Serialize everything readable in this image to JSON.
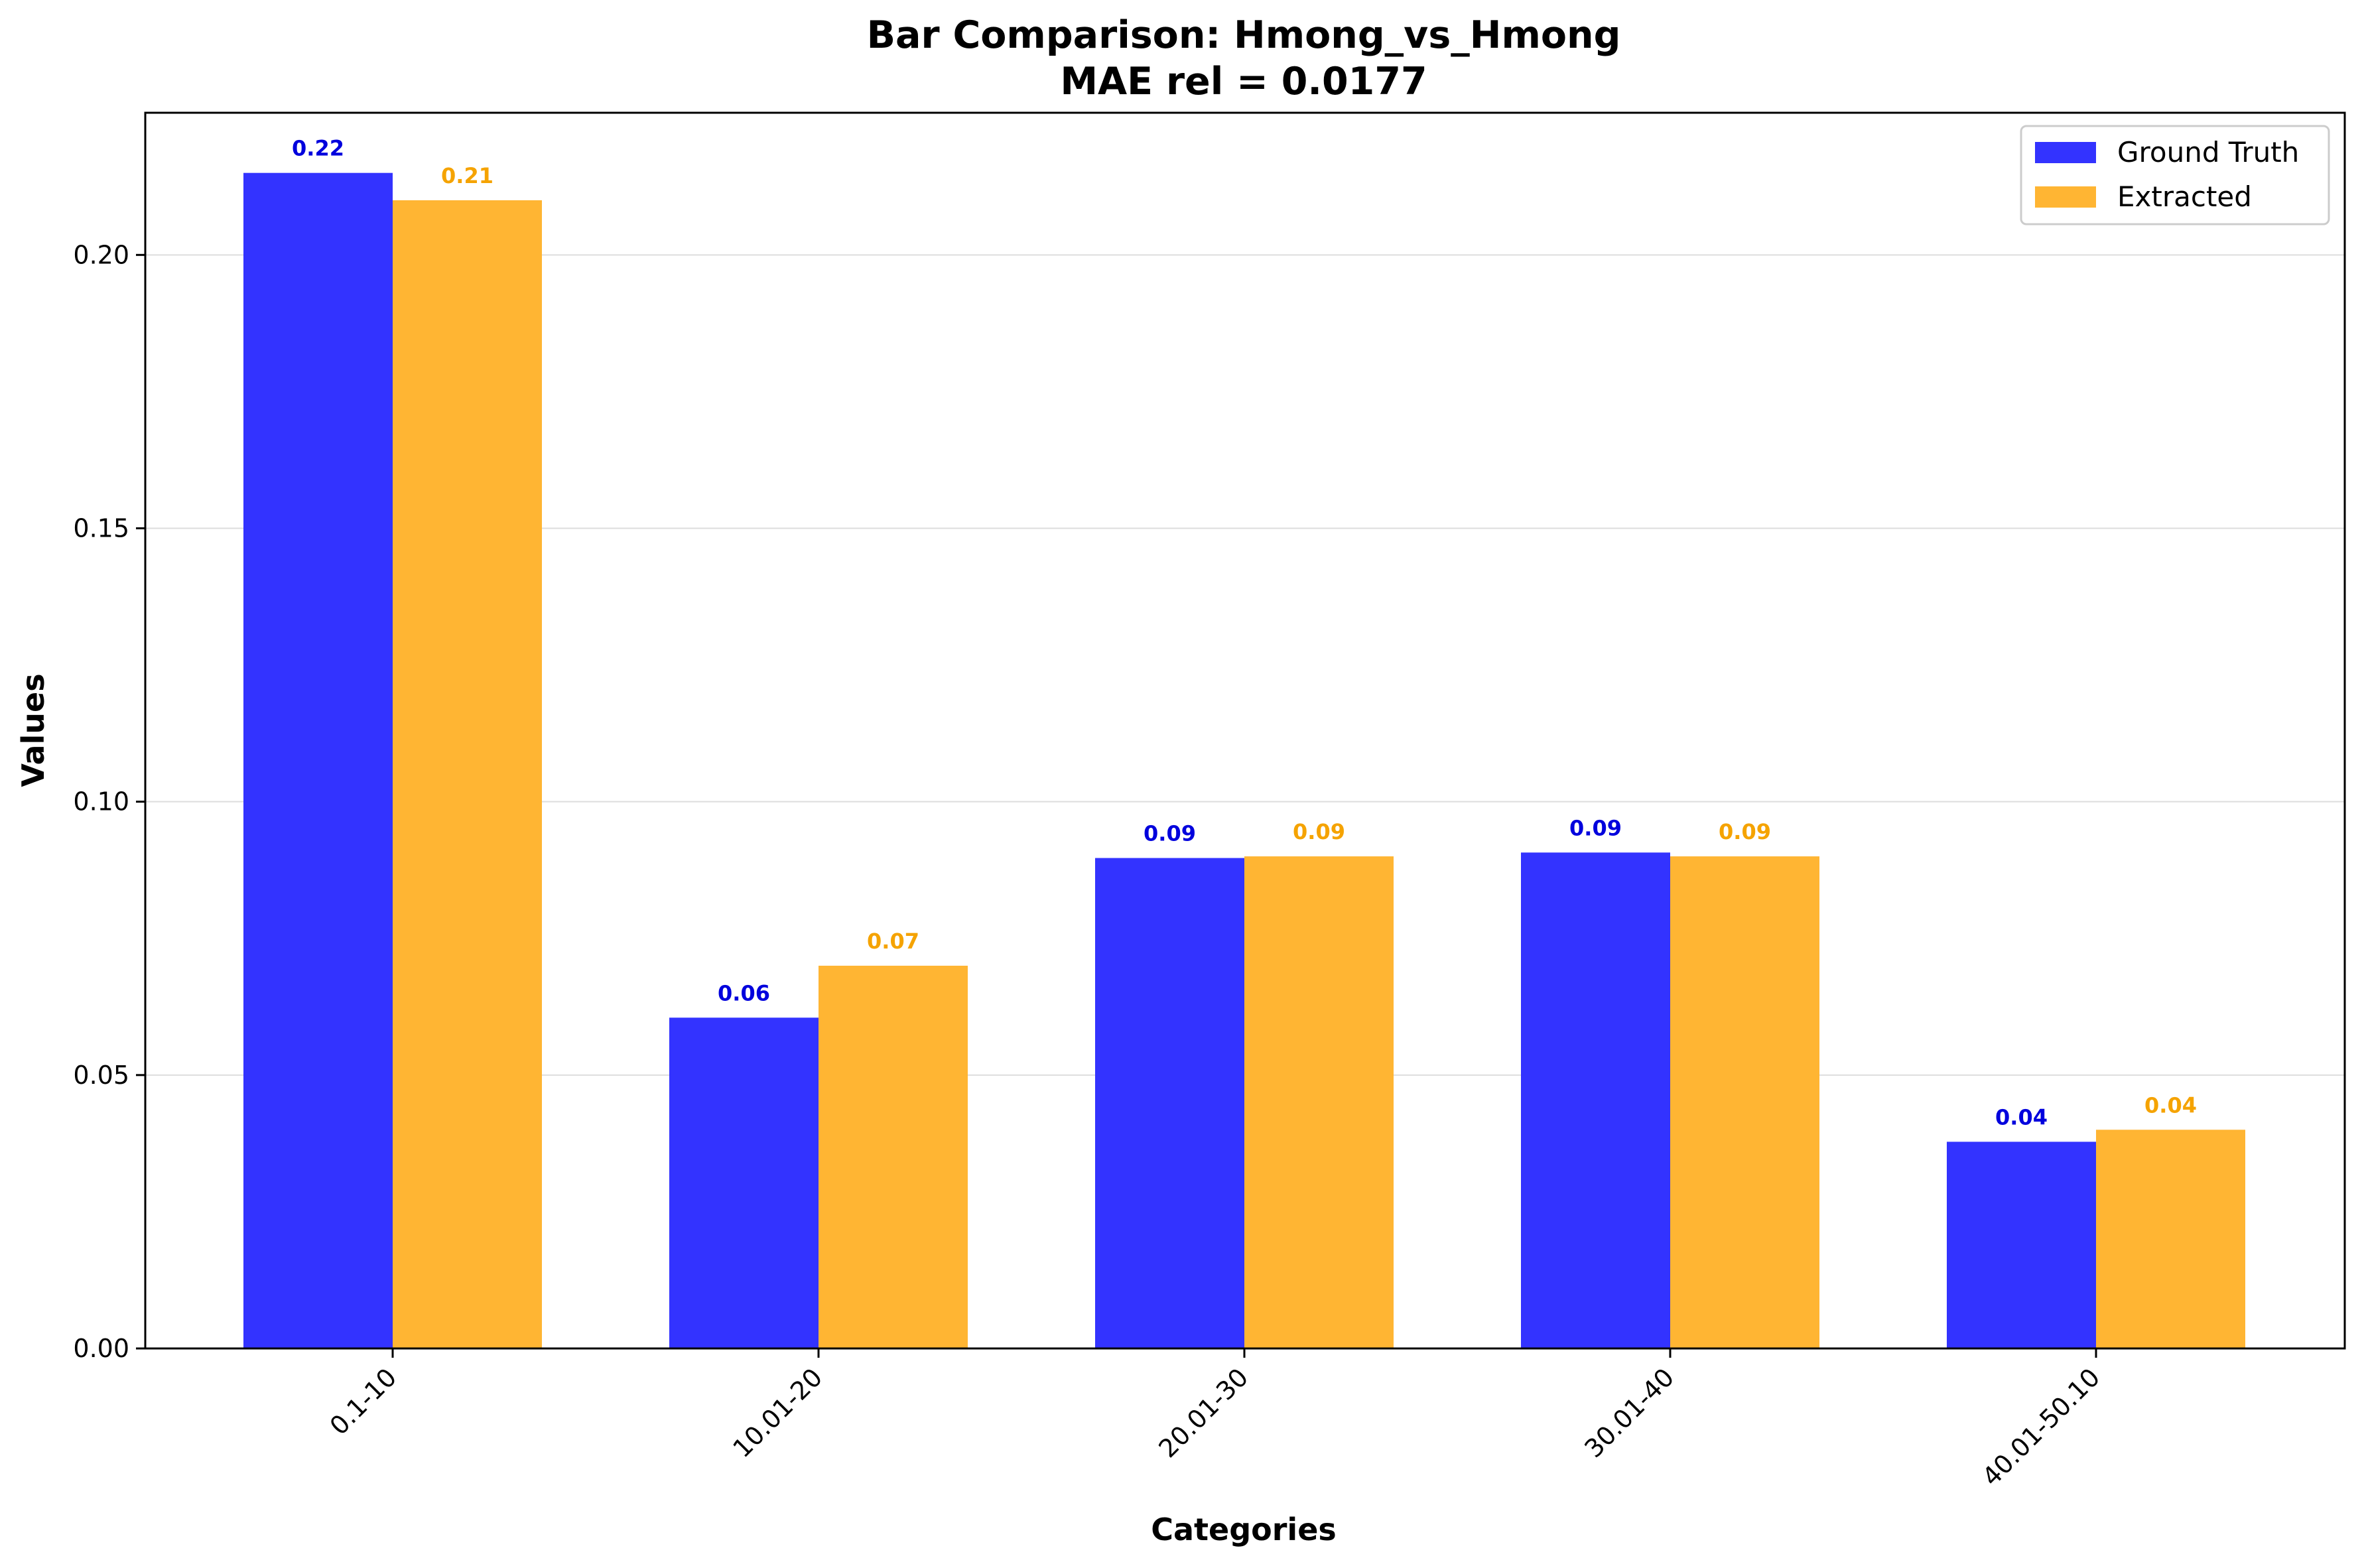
{
  "chart_data": {
    "type": "bar",
    "title_line1": "Bar Comparison: Hmong_vs_Hmong",
    "title_line2": "MAE rel = 0.0177",
    "xlabel": "Categories",
    "ylabel": "Values",
    "categories": [
      "0.1-10",
      "10.01-20",
      "20.01-30",
      "30.01-40",
      "40.01-50.10"
    ],
    "series": [
      {
        "name": "Ground Truth",
        "color": "#3333ff",
        "label_color": "#0000dd",
        "values": [
          0.215,
          0.0605,
          0.0897,
          0.0907,
          0.0378
        ],
        "value_labels": [
          "0.22",
          "0.06",
          "0.09",
          "0.09",
          "0.04"
        ]
      },
      {
        "name": "Extracted",
        "color": "#ffb533",
        "label_color": "#f5a300",
        "values": [
          0.21,
          0.07,
          0.09,
          0.09,
          0.04
        ],
        "value_labels": [
          "0.21",
          "0.07",
          "0.09",
          "0.09",
          "0.04"
        ]
      }
    ],
    "ylim": [
      0,
      0.226
    ],
    "yticks": [
      0.0,
      0.05,
      0.1,
      0.15,
      0.2
    ],
    "ytick_labels": [
      "0.00",
      "0.05",
      "0.10",
      "0.15",
      "0.20"
    ],
    "grid": "horizontal",
    "legend_position": "top-right"
  }
}
